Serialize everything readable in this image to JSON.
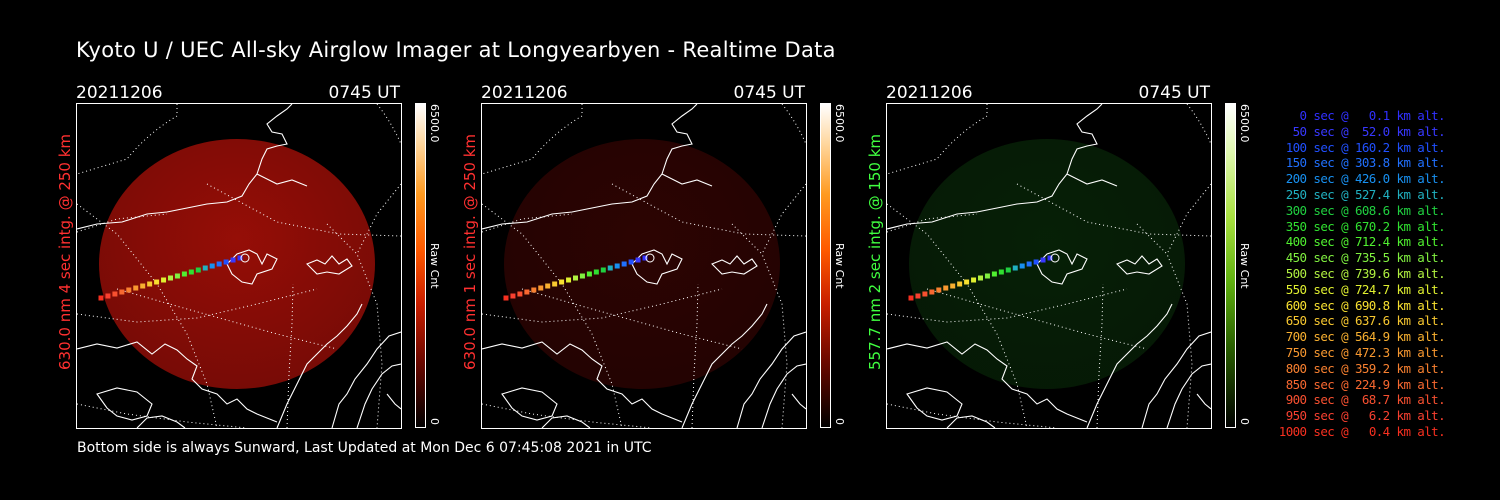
{
  "title": "Kyoto U / UEC All-sky Airglow Imager at Longyearbyen - Realtime Data",
  "footer": "Bottom side is always Sunward, Last Updated at Mon Dec  6 07:45:08 2021 in UTC",
  "colors": {
    "red": "#ff2020",
    "green": "#40ff40"
  },
  "panels": [
    {
      "date": "20211206",
      "time": "0745 UT",
      "side_label": "630.0 nm 4 sec intg. @ 250 km",
      "label_color": "#ff3030",
      "cbar_max": "6500.0",
      "cbar_min": "0",
      "cbar_unit": "Raw Cnt",
      "glow_color": "#b01008",
      "glow_intensity": 0.85
    },
    {
      "date": "20211206",
      "time": "0745 UT",
      "side_label": "630.0 nm 1 sec intg. @ 250 km",
      "label_color": "#ff3030",
      "cbar_max": "6500.0",
      "cbar_min": "0",
      "cbar_unit": "Raw Cnt",
      "glow_color": "#4a0604",
      "glow_intensity": 0.6
    },
    {
      "date": "20211206",
      "time": "0745 UT",
      "side_label": "557.7 nm 2 sec intg. @ 150 km",
      "label_color": "#40ff40",
      "cbar_max": "6500.0",
      "cbar_min": "0",
      "cbar_unit": "Raw Cnt",
      "glow_color": "#0c3a0c",
      "glow_intensity": 0.55
    }
  ],
  "legend": [
    {
      "text": "0 sec @   0.1 km alt.",
      "color": "#3030ff"
    },
    {
      "text": "50 sec @  52.0 km alt.",
      "color": "#3838ff"
    },
    {
      "text": "100 sec @ 160.2 km alt.",
      "color": "#2050ff"
    },
    {
      "text": "150 sec @ 303.8 km alt.",
      "color": "#2070ff"
    },
    {
      "text": "200 sec @ 426.0 km alt.",
      "color": "#1890f0"
    },
    {
      "text": "250 sec @ 527.4 km alt.",
      "color": "#20b0c0"
    },
    {
      "text": "300 sec @ 608.6 km alt.",
      "color": "#20d040"
    },
    {
      "text": "350 sec @ 670.2 km alt.",
      "color": "#30e030"
    },
    {
      "text": "400 sec @ 712.4 km alt.",
      "color": "#50f030"
    },
    {
      "text": "450 sec @ 735.5 km alt.",
      "color": "#80f040"
    },
    {
      "text": "500 sec @ 739.6 km alt.",
      "color": "#b0f040"
    },
    {
      "text": "550 sec @ 724.7 km alt.",
      "color": "#e0f030"
    },
    {
      "text": "600 sec @ 690.8 km alt.",
      "color": "#f8e030"
    },
    {
      "text": "650 sec @ 637.6 km alt.",
      "color": "#f8c830"
    },
    {
      "text": "700 sec @ 564.9 km alt.",
      "color": "#f8b030"
    },
    {
      "text": "750 sec @ 472.3 km alt.",
      "color": "#f89830"
    },
    {
      "text": "800 sec @ 359.2 km alt.",
      "color": "#f88030"
    },
    {
      "text": "850 sec @ 224.9 km alt.",
      "color": "#f86830"
    },
    {
      "text": "900 sec @  68.7 km alt.",
      "color": "#f85030"
    },
    {
      "text": "950 sec @   6.2 km alt.",
      "color": "#f84030"
    },
    {
      "text": "1000 sec @   0.4 km alt.",
      "color": "#f83020"
    }
  ]
}
